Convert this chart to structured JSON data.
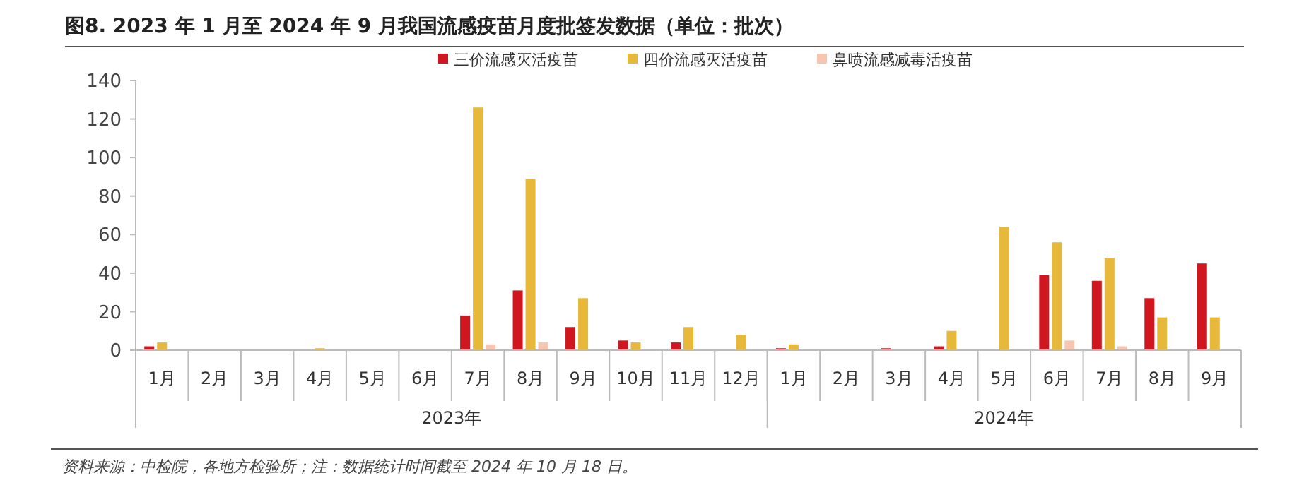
{
  "chart_data": {
    "type": "bar",
    "title": "图8. 2023 年 1 月至 2024 年 9 月我国流感疫苗月度批签发数据（单位：批次）",
    "categories": [
      "1月",
      "2月",
      "3月",
      "4月",
      "5月",
      "6月",
      "7月",
      "8月",
      "9月",
      "10月",
      "11月",
      "12月",
      "1月",
      "2月",
      "3月",
      "4月",
      "5月",
      "6月",
      "7月",
      "8月",
      "9月"
    ],
    "series": [
      {
        "name": "三价流感灭活疫苗",
        "color": "#d0171f",
        "values": [
          2,
          0,
          0,
          0,
          0,
          0,
          18,
          31,
          12,
          5,
          4,
          0,
          1,
          0,
          1,
          2,
          0,
          39,
          36,
          27,
          45
        ]
      },
      {
        "name": "四价流感灭活疫苗",
        "color": "#e8b83a",
        "values": [
          4,
          0,
          0,
          1,
          0,
          0,
          126,
          89,
          27,
          4,
          12,
          8,
          3,
          0,
          0,
          10,
          64,
          56,
          48,
          17,
          17
        ]
      },
      {
        "name": "鼻喷流感减毒活疫苗",
        "color": "#f7c6b0",
        "values": [
          0,
          0,
          0,
          0,
          0,
          0,
          3,
          4,
          0,
          0,
          0,
          0,
          0,
          0,
          0,
          0,
          0,
          5,
          2,
          0,
          0
        ]
      }
    ],
    "ylim": [
      0,
      140
    ],
    "yticks": [
      0,
      20,
      40,
      60,
      80,
      100,
      120,
      140
    ],
    "grid": false,
    "legend": "top",
    "annotations": [
      "2023年",
      "2024年",
      "资料来源：中检院，各地方检验所；注：数据统计时间截至 2024 年 10 月 18 日。"
    ]
  }
}
